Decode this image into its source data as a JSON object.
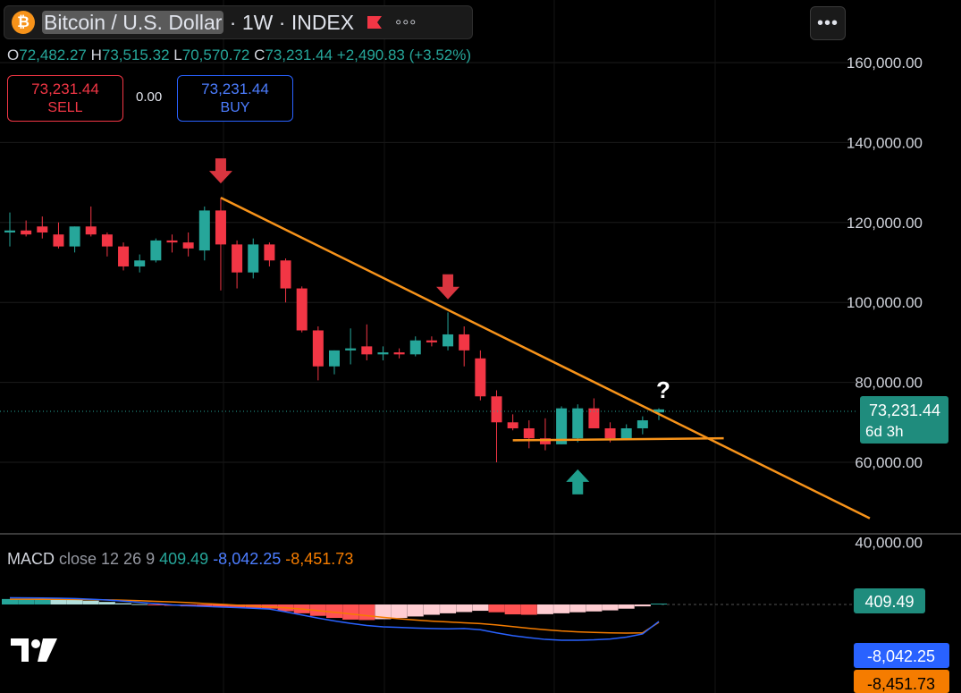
{
  "header": {
    "symbol_title": "Bitcoin / U.S. Dollar",
    "interval": "1W",
    "exchange": "INDEX"
  },
  "ohlc": {
    "open_label": "O",
    "open": "72,482.27",
    "high_label": "H",
    "high": "73,515.32",
    "low_label": "L",
    "low": "70,570.72",
    "close_label": "C",
    "close": "73,231.44",
    "change": "+2,490.83 (+3.52%)"
  },
  "trade": {
    "sell_price": "73,231.44",
    "sell_label": "SELL",
    "spread": "0.00",
    "buy_price": "73,231.44",
    "buy_label": "BUY"
  },
  "price_tag": {
    "price": "73,231.44",
    "countdown": "6d 3h"
  },
  "macd": {
    "name": "MACD",
    "params": "close 12 26 9",
    "histogram": "409.49",
    "macd_line": "-8,042.25",
    "signal": "-8,451.73"
  },
  "annotations": {
    "question_mark": "?"
  },
  "colors": {
    "up": "#26a69a",
    "down": "#f23645",
    "trendline": "#f7931a",
    "macd_line": "#2962ff",
    "signal_line": "#f57c00",
    "background": "#000000"
  },
  "icons": [
    "bitcoin-icon",
    "flag-icon",
    "more-dots-icon",
    "tradingview-logo-icon",
    "down-arrow-icon",
    "up-arrow-icon"
  ],
  "chart_data": [
    {
      "type": "candlestick",
      "interval": "1W",
      "y_tick_labels": [
        "160,000.00",
        "140,000.00",
        "120,000.00",
        "100,000.00",
        "80,000.00",
        "60,000.00",
        "40,000.00"
      ],
      "ylim": [
        40000,
        160000
      ],
      "candles": [
        {
          "o": 117500,
          "h": 122500,
          "l": 114000,
          "c": 118000
        },
        {
          "o": 118000,
          "h": 120500,
          "l": 116500,
          "c": 117000
        },
        {
          "o": 119000,
          "h": 121500,
          "l": 116000,
          "c": 117500
        },
        {
          "o": 117000,
          "h": 120000,
          "l": 113500,
          "c": 114000
        },
        {
          "o": 114000,
          "h": 119000,
          "l": 112500,
          "c": 119000
        },
        {
          "o": 119000,
          "h": 124000,
          "l": 116500,
          "c": 117000
        },
        {
          "o": 117000,
          "h": 117500,
          "l": 111500,
          "c": 114000
        },
        {
          "o": 114000,
          "h": 115000,
          "l": 108000,
          "c": 109000
        },
        {
          "o": 109000,
          "h": 112000,
          "l": 107500,
          "c": 110500
        },
        {
          "o": 110500,
          "h": 116000,
          "l": 110000,
          "c": 115500
        },
        {
          "o": 115500,
          "h": 117000,
          "l": 112500,
          "c": 115000
        },
        {
          "o": 115000,
          "h": 117500,
          "l": 111500,
          "c": 113500
        },
        {
          "o": 113000,
          "h": 124000,
          "l": 110500,
          "c": 123000
        },
        {
          "o": 123000,
          "h": 126200,
          "l": 103000,
          "c": 114500
        },
        {
          "o": 114500,
          "h": 115500,
          "l": 103500,
          "c": 107500
        },
        {
          "o": 107500,
          "h": 116000,
          "l": 106000,
          "c": 114500
        },
        {
          "o": 114500,
          "h": 115000,
          "l": 109000,
          "c": 110500
        },
        {
          "o": 110500,
          "h": 111000,
          "l": 100000,
          "c": 103500
        },
        {
          "o": 103500,
          "h": 104000,
          "l": 92500,
          "c": 93000
        },
        {
          "o": 93000,
          "h": 94000,
          "l": 80500,
          "c": 84000
        },
        {
          "o": 84000,
          "h": 88000,
          "l": 82000,
          "c": 88000
        },
        {
          "o": 88000,
          "h": 93500,
          "l": 84500,
          "c": 88500
        },
        {
          "o": 89000,
          "h": 94500,
          "l": 85500,
          "c": 87000
        },
        {
          "o": 87000,
          "h": 89000,
          "l": 85500,
          "c": 87500
        },
        {
          "o": 87500,
          "h": 88500,
          "l": 86000,
          "c": 87000
        },
        {
          "o": 87000,
          "h": 91500,
          "l": 86500,
          "c": 90500
        },
        {
          "o": 90500,
          "h": 91500,
          "l": 89000,
          "c": 90000
        },
        {
          "o": 89000,
          "h": 97500,
          "l": 88000,
          "c": 92000
        },
        {
          "o": 92000,
          "h": 94000,
          "l": 84000,
          "c": 88000
        },
        {
          "o": 86000,
          "h": 88000,
          "l": 75500,
          "c": 76500
        },
        {
          "o": 76500,
          "h": 78000,
          "l": 60000,
          "c": 70000
        },
        {
          "o": 70000,
          "h": 72000,
          "l": 68000,
          "c": 68500
        },
        {
          "o": 68500,
          "h": 70500,
          "l": 63500,
          "c": 66000
        },
        {
          "o": 66000,
          "h": 71000,
          "l": 63000,
          "c": 64500
        },
        {
          "o": 64500,
          "h": 74000,
          "l": 64500,
          "c": 73500
        },
        {
          "o": 66000,
          "h": 74500,
          "l": 65000,
          "c": 73500
        },
        {
          "o": 73500,
          "h": 76000,
          "l": 68500,
          "c": 68500
        },
        {
          "o": 68500,
          "h": 70000,
          "l": 65000,
          "c": 66000
        },
        {
          "o": 66000,
          "h": 69500,
          "l": 65500,
          "c": 68500
        },
        {
          "o": 68500,
          "h": 71500,
          "l": 67000,
          "c": 70500
        },
        {
          "o": 72482.27,
          "h": 73515.32,
          "l": 70570.72,
          "c": 73231.44
        }
      ],
      "trendlines": [
        {
          "name": "descending resistance",
          "from": {
            "bar": 13,
            "price": 126200
          },
          "to": {
            "bar": 53,
            "price": 46000
          }
        },
        {
          "name": "horizontal support",
          "from": {
            "bar": 31,
            "price": 65500
          },
          "to": {
            "bar": 44,
            "price": 66000
          }
        }
      ],
      "markers": [
        {
          "type": "down-arrow",
          "bar": 13,
          "price": 132000
        },
        {
          "type": "down-arrow",
          "bar": 27,
          "price": 103000
        },
        {
          "type": "up-arrow",
          "bar": 35,
          "price": 56000
        },
        {
          "type": "question-mark",
          "bar": 41,
          "price": 79000
        }
      ]
    },
    {
      "type": "histogram+line",
      "name": "MACD close 12 26 9",
      "histogram": [
        2600,
        2600,
        2600,
        2400,
        2200,
        1800,
        1200,
        600,
        200,
        -200,
        -600,
        -900,
        -1100,
        -1300,
        -1500,
        -1800,
        -2000,
        -3200,
        -4200,
        -5400,
        -6400,
        -7200,
        -7400,
        -7000,
        -6400,
        -5700,
        -4900,
        -4200,
        -3600,
        -3000,
        -3700,
        -4700,
        -4900,
        -4600,
        -4200,
        -3700,
        -3300,
        -2800,
        -2000,
        -900,
        409.49
      ],
      "macd_line": [
        3200,
        3150,
        3100,
        3000,
        2800,
        2500,
        2100,
        1600,
        1000,
        400,
        -200,
        -600,
        -900,
        -1200,
        -1500,
        -1800,
        -2200,
        -3500,
        -5000,
        -6500,
        -7800,
        -9000,
        -10000,
        -10600,
        -10900,
        -11200,
        -11400,
        -11600,
        -11400,
        -12000,
        -13500,
        -14800,
        -15800,
        -16600,
        -17000,
        -17000,
        -16800,
        -16400,
        -15500,
        -14000,
        -8042.25
      ],
      "signal": [
        2500,
        2500,
        2450,
        2450,
        2400,
        2300,
        2200,
        2000,
        1800,
        1500,
        1200,
        900,
        500,
        100,
        -300,
        -700,
        -1100,
        -1600,
        -2200,
        -2900,
        -3700,
        -4500,
        -5300,
        -6100,
        -6800,
        -7400,
        -7900,
        -8300,
        -8700,
        -9100,
        -9700,
        -10500,
        -11300,
        -12000,
        -12600,
        -13000,
        -13300,
        -13500,
        -13600,
        -13500,
        -8451.73
      ]
    }
  ]
}
